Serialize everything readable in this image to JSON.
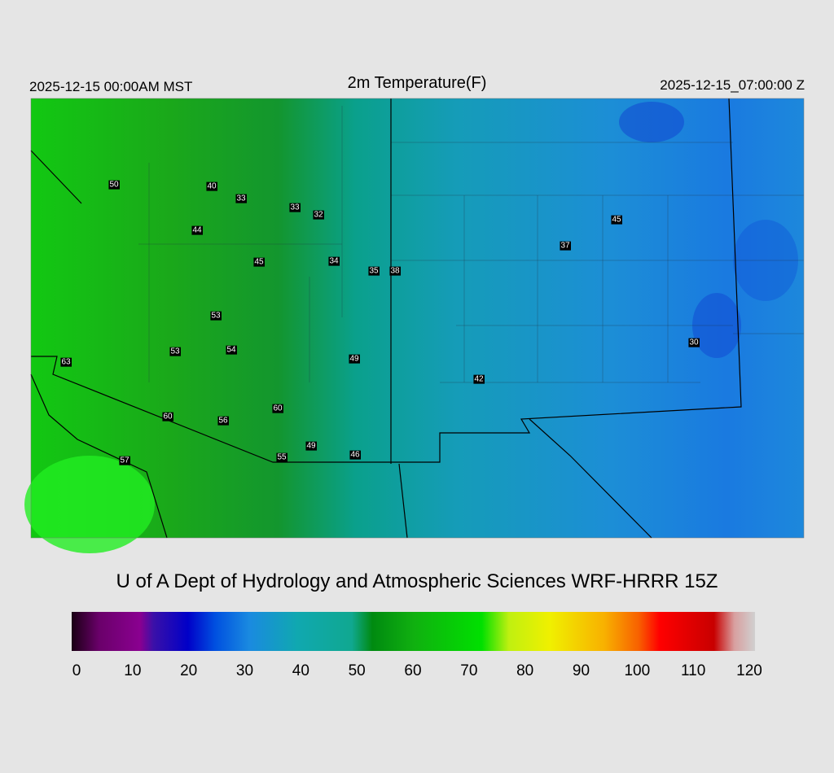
{
  "header": {
    "left": "2025-12-15 00:00AM MST",
    "title": "2m Temperature(F)",
    "right": "2025-12-15_07:00:00 Z"
  },
  "stations": [
    50,
    40,
    33,
    33,
    32,
    44,
    45,
    34,
    35,
    38,
    37,
    45,
    53,
    53,
    54,
    49,
    63,
    30,
    42,
    60,
    56,
    60,
    49,
    46,
    55,
    57
  ],
  "footer": "U of A Dept of Hydrology and Atmospheric Sciences WRF-HRRR 15Z",
  "colorbar": {
    "ticks": [
      0,
      10,
      20,
      30,
      40,
      50,
      60,
      70,
      80,
      90,
      100,
      110,
      120
    ]
  }
}
